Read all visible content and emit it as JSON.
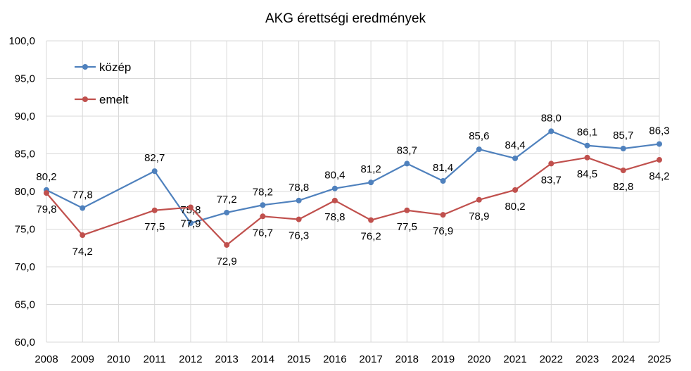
{
  "chart_data": {
    "type": "line",
    "title": "AKG érettségi eredmények",
    "xlabel": "",
    "ylabel": "",
    "categories": [
      "2008",
      "2009",
      "2010",
      "2011",
      "2012",
      "2013",
      "2014",
      "2015",
      "2016",
      "2017",
      "2018",
      "2019",
      "2020",
      "2021",
      "2022",
      "2023",
      "2024",
      "2025"
    ],
    "ylim": [
      60,
      100
    ],
    "yticks": [
      "60,0",
      "65,0",
      "70,0",
      "75,0",
      "80,0",
      "85,0",
      "90,0",
      "95,0",
      "100,0"
    ],
    "grid": true,
    "legend_position": "top-left",
    "series": [
      {
        "name": "közép",
        "color": "#4f81bd",
        "values": [
          80.2,
          77.8,
          null,
          82.7,
          75.8,
          77.2,
          78.2,
          78.8,
          80.4,
          81.2,
          83.7,
          81.4,
          85.6,
          84.4,
          88.0,
          86.1,
          85.7,
          86.3
        ],
        "labels": [
          "80,2",
          "77,8",
          null,
          "82,7",
          "75,8",
          "77,2",
          "78,2",
          "78,8",
          "80,4",
          "81,2",
          "83,7",
          "81,4",
          "85,6",
          "84,4",
          "88,0",
          "86,1",
          "85,7",
          "86,3"
        ]
      },
      {
        "name": "emelt",
        "color": "#c0504d",
        "values": [
          79.8,
          74.2,
          null,
          77.5,
          77.9,
          72.9,
          76.7,
          76.3,
          78.8,
          76.2,
          77.5,
          76.9,
          78.9,
          80.2,
          83.7,
          84.5,
          82.8,
          84.2
        ],
        "labels": [
          "79,8",
          "74,2",
          null,
          "77,5",
          "77,9",
          "72,9",
          "76,7",
          "76,3",
          "78,8",
          "76,2",
          "77,5",
          "76,9",
          "78,9",
          "80,2",
          "83,7",
          "84,5",
          "82,8",
          "84,2"
        ]
      }
    ]
  }
}
